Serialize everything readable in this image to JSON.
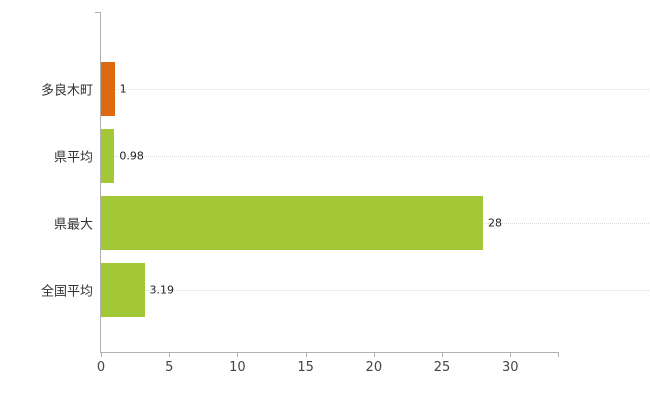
{
  "chart_data": {
    "type": "bar",
    "orientation": "horizontal",
    "title": "",
    "xlabel": "",
    "ylabel": "",
    "categories": [
      "多良木町",
      "県平均",
      "県最大",
      "全国平均"
    ],
    "values": [
      1,
      0.98,
      28,
      3.19
    ],
    "value_labels": [
      "1",
      "0.98",
      "28",
      "3.19"
    ],
    "bar_colors": [
      "#dd6a10",
      "#a2c837",
      "#a2c837",
      "#a2c837"
    ],
    "xlim": [
      0,
      33.5
    ],
    "x_ticks": [
      0,
      5,
      10,
      15,
      20,
      25,
      30
    ],
    "grid": "horizontal-dotted",
    "legend_position": "none",
    "axis_color": "#b0b0b0"
  }
}
